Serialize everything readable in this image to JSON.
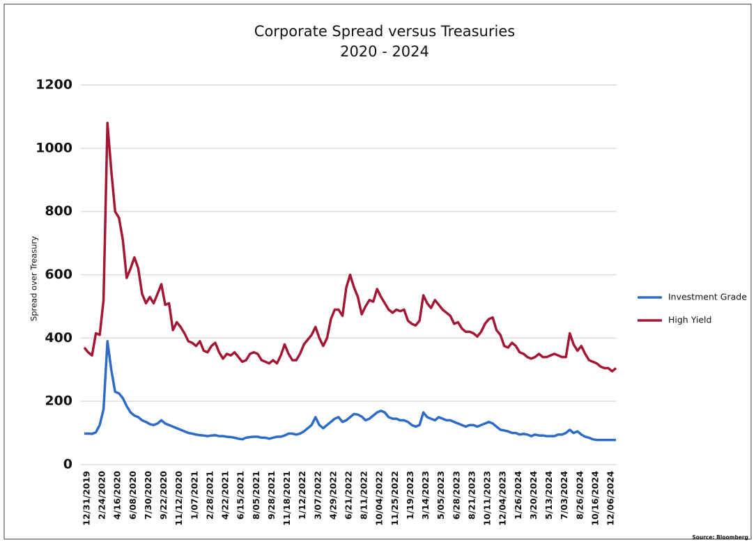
{
  "chart_data": {
    "type": "line",
    "title": "Corporate Spread versus Treasuries",
    "subtitle": "2020 - 2024",
    "y_label": "Spread over Treasury",
    "source": "Source: Bloomberg",
    "categories": [
      "12/31/2019",
      null,
      null,
      null,
      "2/24/2020",
      null,
      null,
      null,
      "4/16/2020",
      null,
      null,
      null,
      "6/08/2020",
      null,
      null,
      null,
      "7/30/2020",
      null,
      null,
      null,
      "9/22/2020",
      null,
      null,
      null,
      "11/12/2020",
      null,
      null,
      null,
      "1/07/2021",
      null,
      null,
      null,
      "2/28/2021",
      null,
      null,
      null,
      "4/22/2021",
      null,
      null,
      null,
      "6/15/2021",
      null,
      null,
      null,
      "8/05/2021",
      null,
      null,
      null,
      "9/28/2021",
      null,
      null,
      null,
      "11/18/2021",
      null,
      null,
      null,
      "1/12/2022",
      null,
      null,
      null,
      "3/07/2022",
      null,
      null,
      null,
      "4/29/2022",
      null,
      null,
      null,
      "6/21/2022",
      null,
      null,
      null,
      "8/11/2022",
      null,
      null,
      null,
      "10/04/2022",
      null,
      null,
      null,
      "11/25/2022",
      null,
      null,
      null,
      "1/19/2023",
      null,
      null,
      null,
      "3/14/2023",
      null,
      null,
      null,
      "5/05/2023",
      null,
      null,
      null,
      "6/28/2023",
      null,
      null,
      null,
      "8/21/2023",
      null,
      null,
      null,
      "10/11/2023",
      null,
      null,
      null,
      "12/04/2023",
      null,
      null,
      null,
      "1/26/2024",
      null,
      null,
      null,
      "3/20/2024",
      null,
      null,
      null,
      "5/13/2024",
      null,
      null,
      null,
      "7/03/2024",
      null,
      null,
      null,
      "8/26/2024",
      null,
      null,
      null,
      "10/16/2024",
      null,
      null,
      null,
      "12/06/2024",
      null,
      null
    ],
    "series": [
      {
        "name": "Investment Grade",
        "color": "#2d6bc4",
        "values": [
          98,
          98,
          97,
          102,
          125,
          175,
          390,
          300,
          230,
          225,
          210,
          185,
          165,
          155,
          150,
          140,
          135,
          128,
          125,
          130,
          140,
          130,
          125,
          120,
          115,
          110,
          105,
          100,
          98,
          95,
          93,
          92,
          90,
          92,
          93,
          90,
          90,
          88,
          87,
          85,
          82,
          80,
          85,
          87,
          88,
          88,
          85,
          85,
          82,
          85,
          88,
          88,
          92,
          98,
          98,
          95,
          98,
          105,
          115,
          125,
          150,
          125,
          115,
          125,
          135,
          145,
          150,
          135,
          140,
          150,
          160,
          158,
          152,
          140,
          145,
          155,
          165,
          170,
          165,
          150,
          145,
          145,
          140,
          140,
          135,
          125,
          120,
          125,
          165,
          150,
          145,
          140,
          150,
          145,
          140,
          140,
          135,
          130,
          125,
          120,
          125,
          125,
          120,
          125,
          130,
          135,
          130,
          120,
          110,
          108,
          105,
          100,
          100,
          95,
          97,
          95,
          90,
          95,
          92,
          92,
          90,
          90,
          90,
          95,
          95,
          100,
          110,
          100,
          105,
          95,
          88,
          85,
          80,
          78,
          78,
          78,
          78,
          78,
          78
        ]
      },
      {
        "name": "High Yield",
        "color": "#a31735",
        "values": [
          370,
          355,
          345,
          415,
          410,
          520,
          1080,
          930,
          800,
          780,
          710,
          590,
          620,
          655,
          620,
          540,
          510,
          530,
          510,
          540,
          570,
          505,
          510,
          425,
          450,
          435,
          415,
          390,
          385,
          375,
          390,
          360,
          355,
          375,
          385,
          355,
          335,
          350,
          345,
          355,
          340,
          325,
          330,
          350,
          355,
          350,
          330,
          325,
          320,
          330,
          320,
          345,
          380,
          350,
          330,
          330,
          350,
          380,
          395,
          410,
          435,
          400,
          375,
          400,
          460,
          490,
          490,
          470,
          560,
          600,
          560,
          530,
          475,
          500,
          520,
          515,
          555,
          530,
          510,
          490,
          480,
          490,
          485,
          490,
          455,
          445,
          440,
          455,
          535,
          510,
          495,
          520,
          505,
          490,
          480,
          470,
          445,
          450,
          430,
          420,
          420,
          415,
          405,
          420,
          445,
          460,
          465,
          425,
          410,
          375,
          370,
          385,
          375,
          355,
          350,
          340,
          335,
          340,
          350,
          340,
          340,
          345,
          350,
          345,
          340,
          340,
          415,
          380,
          360,
          375,
          350,
          330,
          325,
          320,
          310,
          305,
          305,
          295,
          305
        ]
      }
    ],
    "ylim": [
      0,
      1200
    ],
    "yticks": [
      0,
      200,
      400,
      600,
      800,
      1000,
      1200
    ],
    "grid": true,
    "legend": "right"
  }
}
